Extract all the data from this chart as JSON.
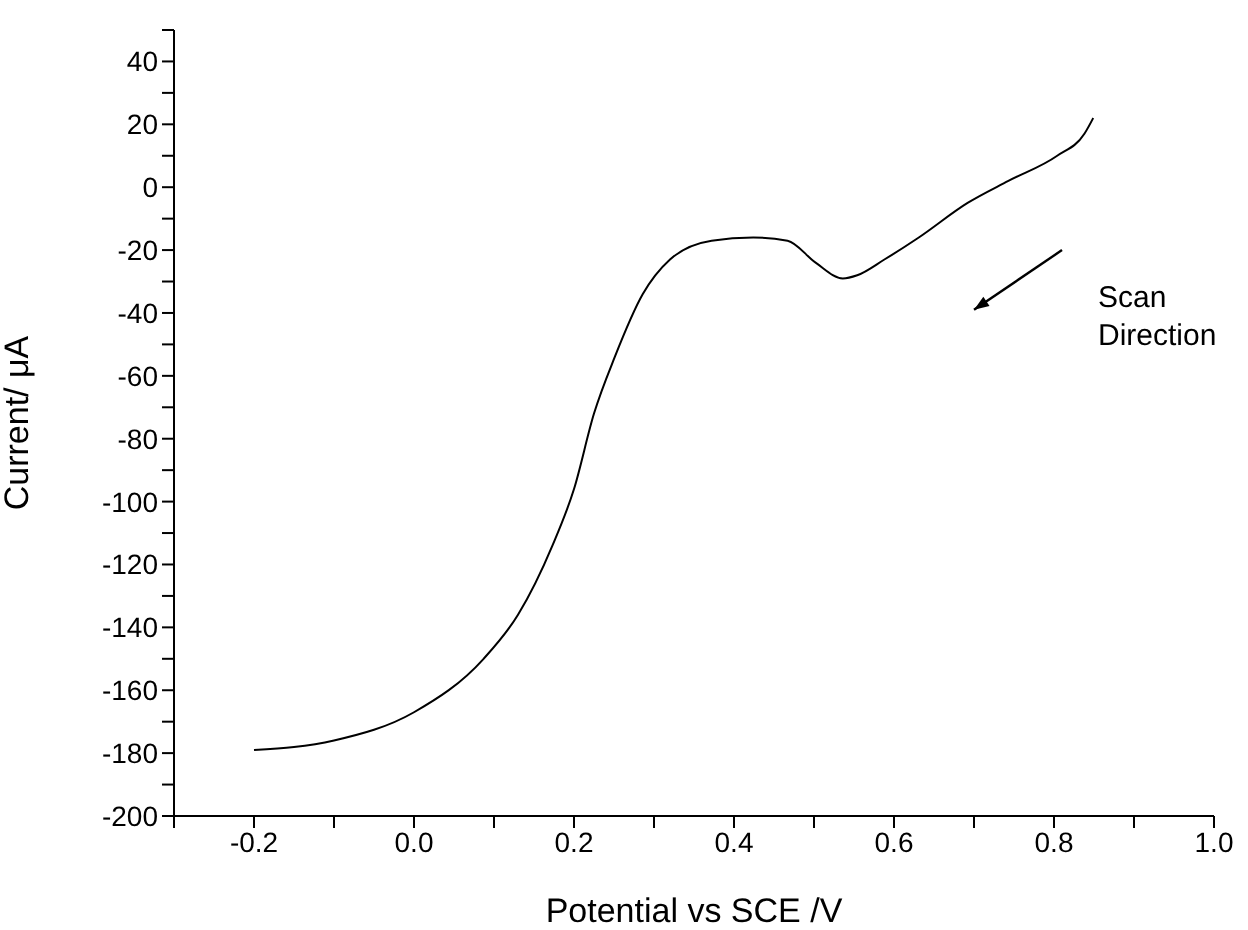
{
  "chart_data": {
    "type": "line",
    "xlabel": "Potential vs SCE /V",
    "ylabel": "Current/ μA",
    "x": [
      -0.2,
      -0.1,
      0.0,
      0.087,
      0.13,
      0.173,
      0.2,
      0.225,
      0.251,
      0.286,
      0.32,
      0.372,
      0.424,
      0.467,
      0.502,
      0.536,
      0.554,
      0.588,
      0.631,
      0.692,
      0.743,
      0.804,
      0.838,
      0.849
    ],
    "series": [
      {
        "color": "#000000",
        "values": [
          -179,
          -176,
          -167,
          -150,
          -136,
          -114,
          -96,
          -72,
          -54,
          -34,
          -23,
          -17,
          -16,
          -17,
          -24,
          -29,
          -28,
          -23,
          -16,
          -5,
          2,
          10,
          17,
          22
        ]
      }
    ],
    "xlim": [
      -0.3,
      1.0
    ],
    "xticks": [
      {
        "value": -0.3,
        "label": null
      },
      {
        "value": -0.2,
        "label": "-0.2"
      },
      {
        "value": -0.1,
        "label": null
      },
      {
        "value": 0.0,
        "label": "0.0"
      },
      {
        "value": 0.1,
        "label": null
      },
      {
        "value": 0.2,
        "label": "0.2"
      },
      {
        "value": 0.3,
        "label": null
      },
      {
        "value": 0.4,
        "label": "0.4"
      },
      {
        "value": 0.5,
        "label": null
      },
      {
        "value": 0.6,
        "label": "0.6"
      },
      {
        "value": 0.7,
        "label": null
      },
      {
        "value": 0.8,
        "label": "0.8"
      },
      {
        "value": 0.9,
        "label": null
      },
      {
        "value": 1.0,
        "label": "1.0"
      }
    ],
    "ylim": [
      -200,
      50
    ],
    "yticks": [
      -200,
      {
        "value": -190,
        "label": null
      },
      -180,
      {
        "value": -170,
        "label": null
      },
      -160,
      {
        "value": -150,
        "label": null
      },
      -140,
      {
        "value": -130,
        "label": null
      },
      -120,
      {
        "value": -110,
        "label": null
      },
      -100,
      {
        "value": -90,
        "label": null
      },
      -80,
      {
        "value": -70,
        "label": null
      },
      -60,
      {
        "value": -50,
        "label": null
      },
      -40,
      {
        "value": -30,
        "label": null
      },
      -20,
      {
        "value": -10,
        "label": null
      },
      0,
      {
        "value": 10,
        "label": null
      },
      20,
      {
        "value": 30,
        "label": null
      },
      40,
      {
        "value": 50,
        "label": null
      }
    ],
    "annotations": [
      "Scan Direction"
    ],
    "grid": false,
    "legend": false,
    "marker": "none",
    "line_style": "solid"
  }
}
